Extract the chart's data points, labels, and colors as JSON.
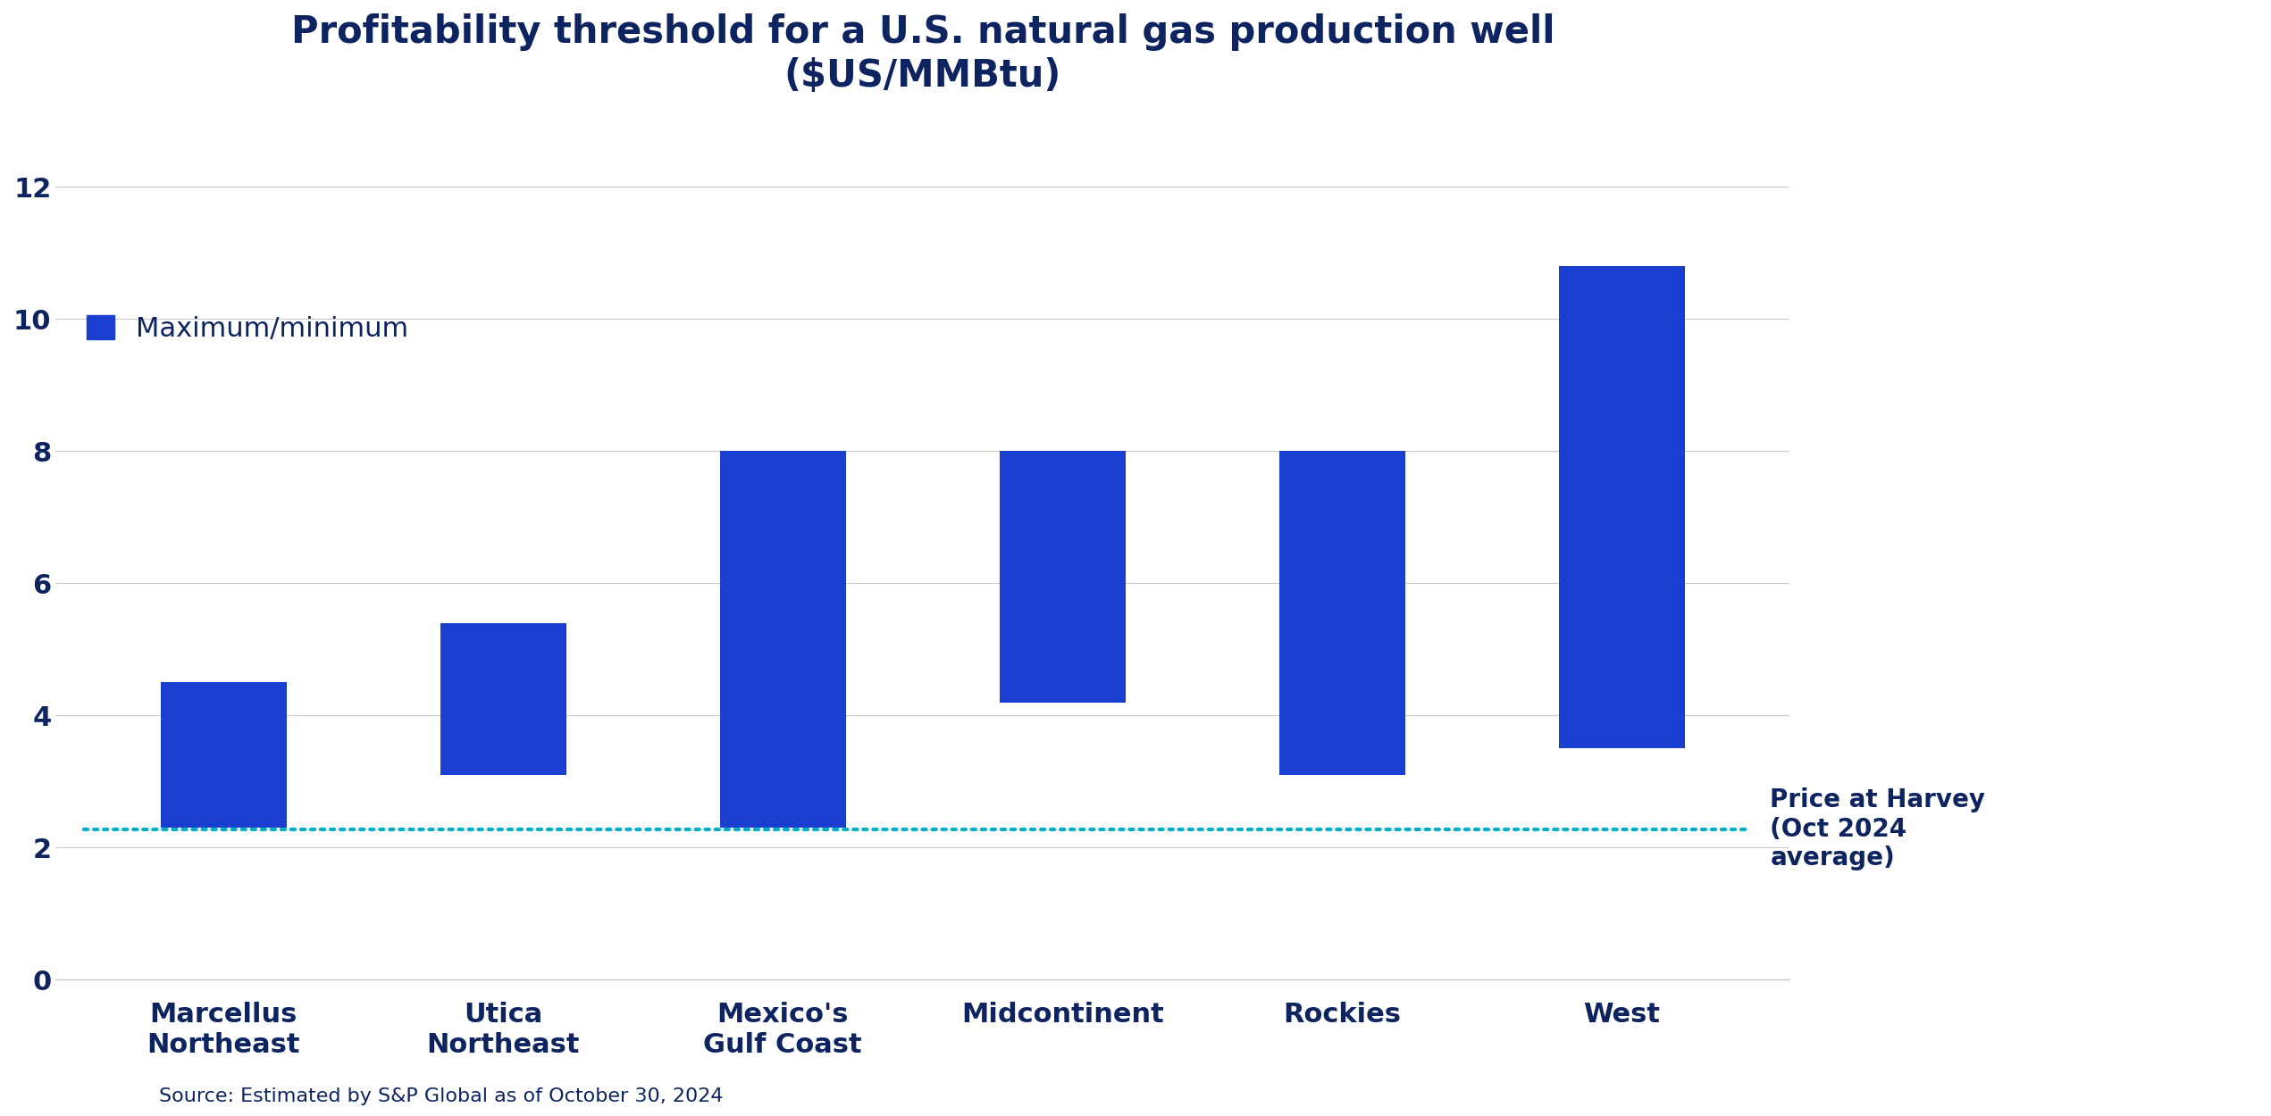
{
  "title": "Profitability threshold for a U.S. natural gas production well\n($US/MMBtu)",
  "categories": [
    "Marcellus\nNortheast",
    "Utica\nNortheast",
    "Mexico's\nGulf Coast",
    "Midcontinent",
    "Rockies",
    "West"
  ],
  "bar_bottoms": [
    2.3,
    3.1,
    2.3,
    4.2,
    3.1,
    3.5
  ],
  "bar_tops": [
    4.5,
    5.4,
    8.0,
    8.0,
    8.0,
    10.8
  ],
  "bar_color": "#1a3ed0",
  "dotted_line_y": 2.28,
  "dotted_line_color": "#00b0c8",
  "dotted_line_label": "Price at Harvey\n(Oct 2024\naverage)",
  "dotted_line_label_color": "#0d2461",
  "legend_label": "Maximum/minimum",
  "ylim": [
    0,
    13.0
  ],
  "yticks": [
    0,
    2,
    4,
    6,
    8,
    10,
    12
  ],
  "background_color": "#ffffff",
  "title_color": "#0d2461",
  "axis_color": "#cccccc",
  "tick_color": "#0d2461",
  "source_text": "Source: Estimated by S&P Global as of October 30, 2024",
  "title_fontsize": 30,
  "tick_fontsize": 22,
  "legend_fontsize": 22,
  "source_fontsize": 16,
  "annotation_fontsize": 20,
  "bar_width": 0.45
}
